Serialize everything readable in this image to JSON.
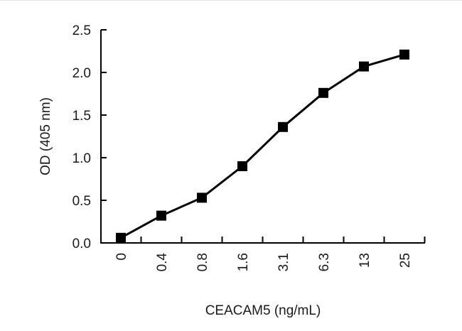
{
  "chart_data": {
    "type": "line",
    "title": "",
    "xlabel": "CEACAM5 (ng/mL)",
    "ylabel": "OD (405 nm)",
    "categories": [
      "0",
      "0.4",
      "0.8",
      "1.6",
      "3.1",
      "6.3",
      "13",
      "25"
    ],
    "series": [
      {
        "name": "CEACAM5",
        "values": [
          0.06,
          0.32,
          0.53,
          0.9,
          1.36,
          1.76,
          2.07,
          2.21
        ],
        "marker": "square",
        "color": "#000000"
      }
    ],
    "ylim": [
      0,
      2.5
    ],
    "yticks": [
      "0.0",
      "0.5",
      "1.0",
      "1.5",
      "2.0",
      "2.5"
    ],
    "grid": false,
    "legend": null
  }
}
